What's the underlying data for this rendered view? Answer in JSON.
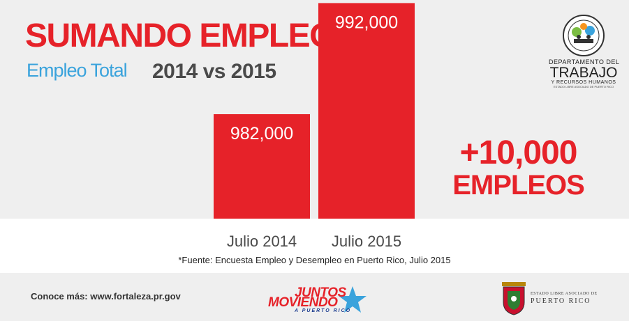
{
  "title": "SUMANDO EMPLEOS",
  "subtitle": "Empleo Total",
  "comparison": "2014 vs 2015",
  "difference": {
    "value": "+10,000",
    "label": "EMPLEOS"
  },
  "source_note": "*Fuente: Encuesta Empleo y Desempleo en Puerto Rico, Julio 2015",
  "department": {
    "line1": "DEPARTAMENTO DEL",
    "line2": "TRABAJO",
    "line3": "Y RECURSOS HUMANOS",
    "line4": "ESTADO LIBRE ASOCIADO DE PUERTO RICO",
    "seal_icon": "department-seal-icon"
  },
  "footer": {
    "link_text": "Conoce más: www.fortaleza.pr.gov",
    "campaign": {
      "line1": "JUNTOS",
      "line2": "MOVIENDO",
      "line3": "A PUERTO RICO",
      "icon": "star-icon"
    },
    "government": {
      "line1": "ESTADO LIBRE ASOCIADO DE",
      "line2": "PUERTO RICO",
      "icon": "coat-of-arms-icon"
    }
  },
  "colors": {
    "accent": "#e62229",
    "subtitle": "#3aa3dc",
    "text_dark": "#4a4a4a",
    "band": "#efefef",
    "star": "#3aa3dc"
  },
  "chart_data": {
    "type": "bar",
    "categories": [
      "Julio 2014",
      "Julio 2015"
    ],
    "values": [
      982000,
      992000
    ],
    "value_labels": [
      "982,000",
      "992,000"
    ],
    "title": "",
    "xlabel": "",
    "ylabel": "",
    "grid": false,
    "legend": "none"
  }
}
